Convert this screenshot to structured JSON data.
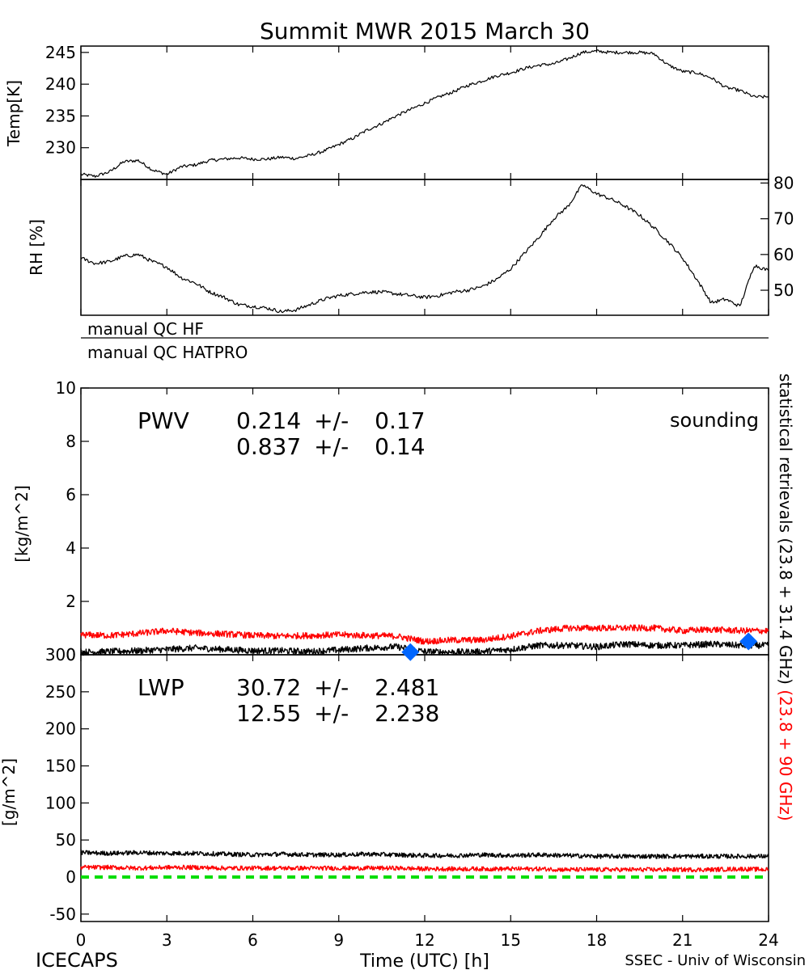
{
  "title": "Summit MWR 2015 March 30",
  "colors": {
    "black": "#000000",
    "red": "#ff0000",
    "blue": "#0066ff",
    "green": "#00dd00"
  },
  "footer": {
    "left": "ICECAPS",
    "center": "Time (UTC) [h]",
    "right": "SSEC - Univ of Wisconsin"
  },
  "qc": {
    "hf_label": "manual QC HF",
    "hatpro_label": "manual QC HATPRO"
  },
  "right_label": {
    "black_part": "statistical retrievals (23.8 + 31.4 GHz)",
    "red_part": "(23.8 + 90 GHz)"
  },
  "x_ticks": [
    "0",
    "3",
    "6",
    "9",
    "12",
    "15",
    "18",
    "21",
    "24"
  ],
  "chart_data": [
    {
      "type": "line",
      "panel": "temperature",
      "ylabel": "Temp[K]",
      "ylim": [
        225,
        246
      ],
      "y_ticks": [
        "230",
        "235",
        "240",
        "245"
      ],
      "xlim": [
        0,
        24
      ],
      "x": [
        0,
        0.5,
        1,
        1.5,
        2,
        2.5,
        3,
        3.5,
        4,
        4.5,
        5,
        5.5,
        6,
        6.5,
        7,
        7.5,
        8,
        8.5,
        9,
        9.5,
        10,
        10.5,
        11,
        11.5,
        12,
        12.5,
        13,
        13.5,
        14,
        14.5,
        15,
        15.5,
        16,
        16.5,
        17,
        17.5,
        18,
        18.5,
        19,
        19.5,
        20,
        20.5,
        21,
        21.5,
        22,
        22.5,
        23,
        23.5,
        24
      ],
      "series": [
        {
          "color": "black",
          "values": [
            225.8,
            225.5,
            226.2,
            227.8,
            228,
            226.5,
            225.8,
            227,
            227.3,
            228,
            228.2,
            228.4,
            228.2,
            228.2,
            228.5,
            228.3,
            228.8,
            229.5,
            230.5,
            231.5,
            232.8,
            233.8,
            235,
            236,
            237,
            238,
            238.8,
            239.8,
            240.5,
            241.3,
            241.8,
            242.5,
            243,
            243.2,
            244,
            245,
            245.2,
            245,
            245,
            245,
            244.8,
            243,
            242,
            241.8,
            241,
            239.5,
            239,
            238,
            238
          ]
        }
      ]
    },
    {
      "type": "line",
      "panel": "relative humidity",
      "ylabel": "RH [%]",
      "ylim": [
        43,
        81
      ],
      "y_ticks": [
        "50",
        "60",
        "70",
        "80"
      ],
      "xlim": [
        0,
        24
      ],
      "x": [
        0,
        0.5,
        1,
        1.5,
        2,
        2.5,
        3,
        3.5,
        4,
        4.5,
        5,
        5.5,
        6,
        6.5,
        7,
        7.5,
        8,
        8.5,
        9,
        9.5,
        10,
        10.5,
        11,
        11.5,
        12,
        12.5,
        13,
        13.5,
        14,
        14.5,
        15,
        15.5,
        16,
        16.5,
        17,
        17.5,
        18,
        18.5,
        19,
        19.5,
        20,
        20.5,
        21,
        21.5,
        22,
        22.5,
        23,
        23.5,
        24
      ],
      "series": [
        {
          "color": "black",
          "values": [
            59,
            57.5,
            58,
            59.5,
            60,
            58,
            56.5,
            53.5,
            52,
            49.5,
            48,
            46,
            45.5,
            45,
            44,
            44.5,
            46,
            47.5,
            48.5,
            49,
            49.5,
            49.5,
            49,
            48.5,
            48,
            48.5,
            49.5,
            50,
            51,
            53,
            56,
            60.5,
            65,
            70,
            73.5,
            79.5,
            77,
            75.5,
            73.5,
            71,
            67.5,
            63.5,
            59,
            53,
            46.5,
            47.5,
            45.5,
            57,
            55.5
          ]
        }
      ]
    },
    {
      "type": "line",
      "panel": "PWV",
      "name": "PWV",
      "ylabel": "[kg/m^2]",
      "ylim": [
        0,
        10
      ],
      "y_ticks": [
        "0",
        "2",
        "4",
        "6",
        "8",
        "10"
      ],
      "xlim": [
        0,
        24
      ],
      "x": [
        0,
        1,
        2,
        3,
        4,
        5,
        6,
        7,
        8,
        9,
        10,
        11,
        12,
        13,
        14,
        15,
        16,
        17,
        18,
        19,
        20,
        21,
        22,
        23,
        24
      ],
      "series": [
        {
          "color": "black",
          "values": [
            0.1,
            0.12,
            0.15,
            0.2,
            0.25,
            0.2,
            0.15,
            0.15,
            0.12,
            0.18,
            0.25,
            0.3,
            0.12,
            0.1,
            0.12,
            0.2,
            0.35,
            0.35,
            0.3,
            0.4,
            0.35,
            0.35,
            0.4,
            0.35,
            0.35
          ]
        },
        {
          "color": "red",
          "values": [
            0.75,
            0.72,
            0.8,
            0.9,
            0.82,
            0.78,
            0.72,
            0.7,
            0.72,
            0.75,
            0.72,
            0.7,
            0.5,
            0.55,
            0.55,
            0.7,
            0.9,
            1.0,
            1.0,
            1.0,
            1.0,
            0.9,
            0.95,
            0.9,
            0.9
          ]
        }
      ],
      "sounding": {
        "label": "sounding",
        "x": [
          11.5,
          23.3
        ],
        "y": [
          0.1,
          0.5
        ]
      },
      "stats": [
        {
          "color": "black",
          "mean": "0.214",
          "pm": "+/-",
          "std": "0.17"
        },
        {
          "color": "red",
          "mean": "0.837",
          "pm": "+/-",
          "std": "0.14"
        }
      ]
    },
    {
      "type": "line",
      "panel": "LWP",
      "name": "LWP",
      "ylabel": "[g/m^2]",
      "ylim": [
        -60,
        300
      ],
      "y_ticks": [
        "-50",
        "0",
        "50",
        "100",
        "150",
        "200",
        "250",
        "300"
      ],
      "xlim": [
        0,
        24
      ],
      "x": [
        0,
        1,
        2,
        3,
        4,
        5,
        6,
        7,
        8,
        9,
        10,
        11,
        12,
        13,
        14,
        15,
        16,
        17,
        18,
        19,
        20,
        21,
        22,
        23,
        24
      ],
      "series": [
        {
          "color": "black",
          "values": [
            33,
            32,
            33,
            32,
            32,
            31,
            30,
            31,
            30,
            30,
            31,
            30,
            29,
            29,
            30,
            29,
            30,
            29,
            28,
            28,
            28,
            28,
            28,
            28,
            28
          ]
        },
        {
          "color": "red",
          "values": [
            13,
            13,
            12,
            13,
            13,
            12,
            12,
            12,
            12,
            12,
            12,
            12,
            11,
            11,
            11,
            11,
            11,
            10,
            10,
            10,
            10,
            10,
            10,
            11,
            10
          ]
        },
        {
          "color": "green",
          "values": [
            0,
            0,
            0,
            0,
            0,
            0,
            0,
            0,
            0,
            0,
            0,
            0,
            0,
            0,
            0,
            0,
            0,
            0,
            0,
            0,
            0,
            0,
            0,
            0,
            0
          ]
        }
      ],
      "stats": [
        {
          "color": "black",
          "mean": "30.72",
          "pm": "+/-",
          "std": "2.481"
        },
        {
          "color": "red",
          "mean": "12.55",
          "pm": "+/-",
          "std": "2.238"
        }
      ]
    }
  ]
}
